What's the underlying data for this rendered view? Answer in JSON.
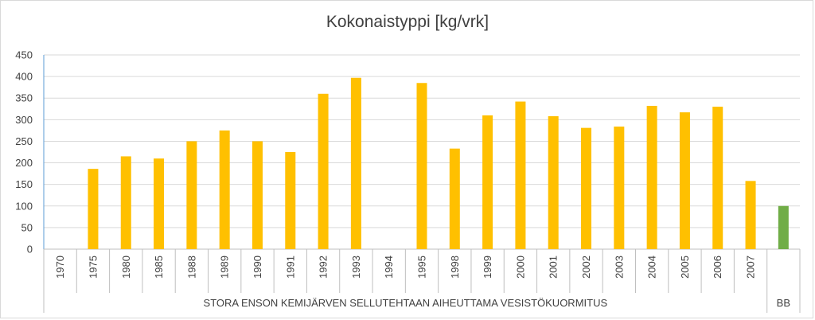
{
  "chart_data": {
    "type": "bar",
    "title": "Kokonaistyppi [kg/vrk]",
    "xlabel": "",
    "ylabel": "",
    "ylim": [
      0,
      450
    ],
    "yticks": [
      0,
      50,
      100,
      150,
      200,
      250,
      300,
      350,
      400,
      450
    ],
    "grid": true,
    "legend": "none",
    "colors": {
      "main": "#ffc000",
      "bb": "#70ad47",
      "grid": "#d9d9d9",
      "axis": "#bfbfbf"
    },
    "categories": [
      "1970",
      "1975",
      "1980",
      "1985",
      "1988",
      "1989",
      "1990",
      "1991",
      "1992",
      "1993",
      "1994",
      "1995",
      "1998",
      "1999",
      "2000",
      "2001",
      "2002",
      "2003",
      "2004",
      "2005",
      "2006",
      "2007",
      ""
    ],
    "values": [
      0,
      186,
      215,
      210,
      250,
      275,
      250,
      225,
      360,
      397,
      0,
      385,
      233,
      310,
      342,
      308,
      281,
      284,
      332,
      317,
      330,
      158,
      100
    ],
    "bar_colors": [
      "main",
      "main",
      "main",
      "main",
      "main",
      "main",
      "main",
      "main",
      "main",
      "main",
      "main",
      "main",
      "main",
      "main",
      "main",
      "main",
      "main",
      "main",
      "main",
      "main",
      "main",
      "main",
      "bb"
    ],
    "groups": [
      {
        "label": "STORA ENSON KEMIJÄRVEN SELLUTEHTAAN AIHEUTTAMA VESISTÖKUORMITUS",
        "span": 22
      },
      {
        "label": "BB",
        "span": 1
      }
    ]
  }
}
